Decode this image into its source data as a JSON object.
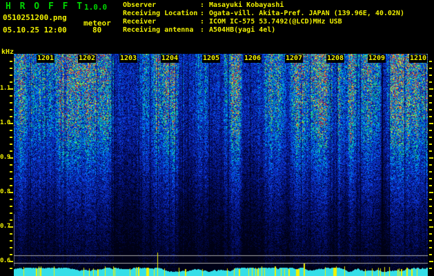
{
  "header": {
    "app_name": "H R O F F T",
    "version": "1.0.0",
    "filename": "0510251200.png",
    "mode": "meteor",
    "datetime": "05.10.25 12:00",
    "gain": "80"
  },
  "station": {
    "rows": [
      {
        "label": "Observer",
        "colon": ":",
        "value": "Masayuki Kobayashi"
      },
      {
        "label": "Receiving Location",
        "colon": ":",
        "value": "Ogata-vill. Akita-Pref. JAPAN (139.96E, 40.02N)"
      },
      {
        "label": "Receiver",
        "colon": ":",
        "value": "ICOM IC-575 53.7492(@LCD)MHz USB"
      },
      {
        "label": "Receiving antenna",
        "colon": ":",
        "value": "A504HB(yagi 4el)"
      }
    ]
  },
  "y_axis": {
    "unit": "kHz",
    "labels": [
      "1.1",
      "1.0",
      "0.9",
      "0.8",
      "0.7",
      "0.6"
    ]
  },
  "x_axis": {
    "labels": [
      "1201",
      "1202",
      "1203",
      "1204",
      "1205",
      "1206",
      "1207",
      "1208",
      "1209",
      "1210"
    ]
  },
  "colors": {
    "background": "#000000",
    "title_green": "#00d400",
    "text_yellow": "#f0f000",
    "tick_yellow": "#e0e000",
    "grid_gray": "#a8a8a8",
    "strip_cyan": "#35dfe8",
    "spike_yellow": "#f2f200"
  }
}
